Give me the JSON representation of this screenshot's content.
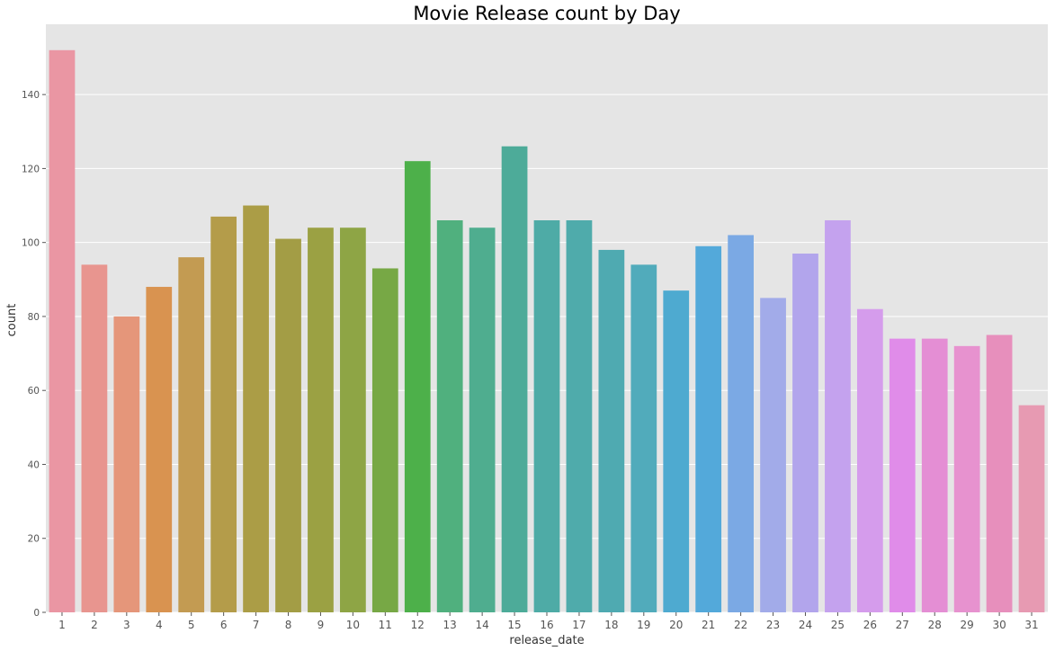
{
  "chart_data": {
    "type": "bar",
    "title": "Movie Release count by Day",
    "xlabel": "release_date",
    "ylabel": "count",
    "categories": [
      "1",
      "2",
      "3",
      "4",
      "5",
      "6",
      "7",
      "8",
      "9",
      "10",
      "11",
      "12",
      "13",
      "14",
      "15",
      "16",
      "17",
      "18",
      "19",
      "20",
      "21",
      "22",
      "23",
      "24",
      "25",
      "26",
      "27",
      "28",
      "29",
      "30",
      "31"
    ],
    "values": [
      152,
      94,
      80,
      88,
      96,
      107,
      110,
      101,
      104,
      104,
      93,
      122,
      106,
      104,
      126,
      106,
      106,
      98,
      94,
      87,
      99,
      102,
      85,
      97,
      106,
      82,
      74,
      74,
      72,
      75,
      56
    ],
    "ylim": [
      0,
      159
    ],
    "yticks": [
      0,
      20,
      40,
      60,
      80,
      100,
      120,
      140
    ],
    "grid": true,
    "background": "#e5e5e5",
    "colors": [
      "#ea96a3",
      "#e8958f",
      "#e5967a",
      "#d99350",
      "#c39b52",
      "#b49c4a",
      "#ab9d46",
      "#a39d45",
      "#9ba143",
      "#8ea545",
      "#77a845",
      "#4db04a",
      "#50b07e",
      "#4fad8f",
      "#4dab99",
      "#4eaba6",
      "#4fabab",
      "#4faab1",
      "#51abbb",
      "#4eaad0",
      "#53a9da",
      "#7ba9e4",
      "#a2abe9",
      "#b2a5ec",
      "#c4a2ee",
      "#d59cec",
      "#e08ce9",
      "#e48ed4",
      "#e792cf",
      "#e78fbc",
      "#e79ab2"
    ]
  }
}
